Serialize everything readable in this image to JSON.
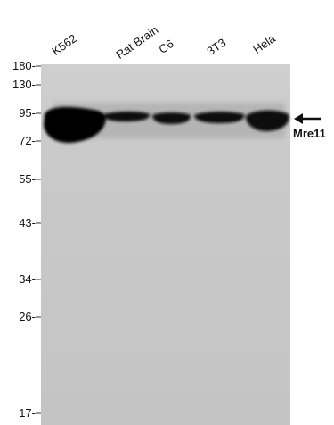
{
  "lanes": [
    {
      "label": "K562"
    },
    {
      "label": "Rat Brain"
    },
    {
      "label": "C6"
    },
    {
      "label": "3T3"
    },
    {
      "label": "Hela"
    }
  ],
  "markers": [
    {
      "label": "180-",
      "kda": 180
    },
    {
      "label": "130-",
      "kda": 130
    },
    {
      "label": "95-",
      "kda": 95
    },
    {
      "label": "72-",
      "kda": 72
    },
    {
      "label": "55-",
      "kda": 55
    },
    {
      "label": "43-",
      "kda": 43
    },
    {
      "label": "34-",
      "kda": 34
    },
    {
      "label": "26-",
      "kda": 26
    },
    {
      "label": "17-",
      "kda": 17
    }
  ],
  "target": {
    "label": "Mre11",
    "arrow": "left-arrow-icon"
  },
  "colors": {
    "membrane": "#c8c8c8",
    "band": "#0a0a0a",
    "text": "#111111"
  }
}
